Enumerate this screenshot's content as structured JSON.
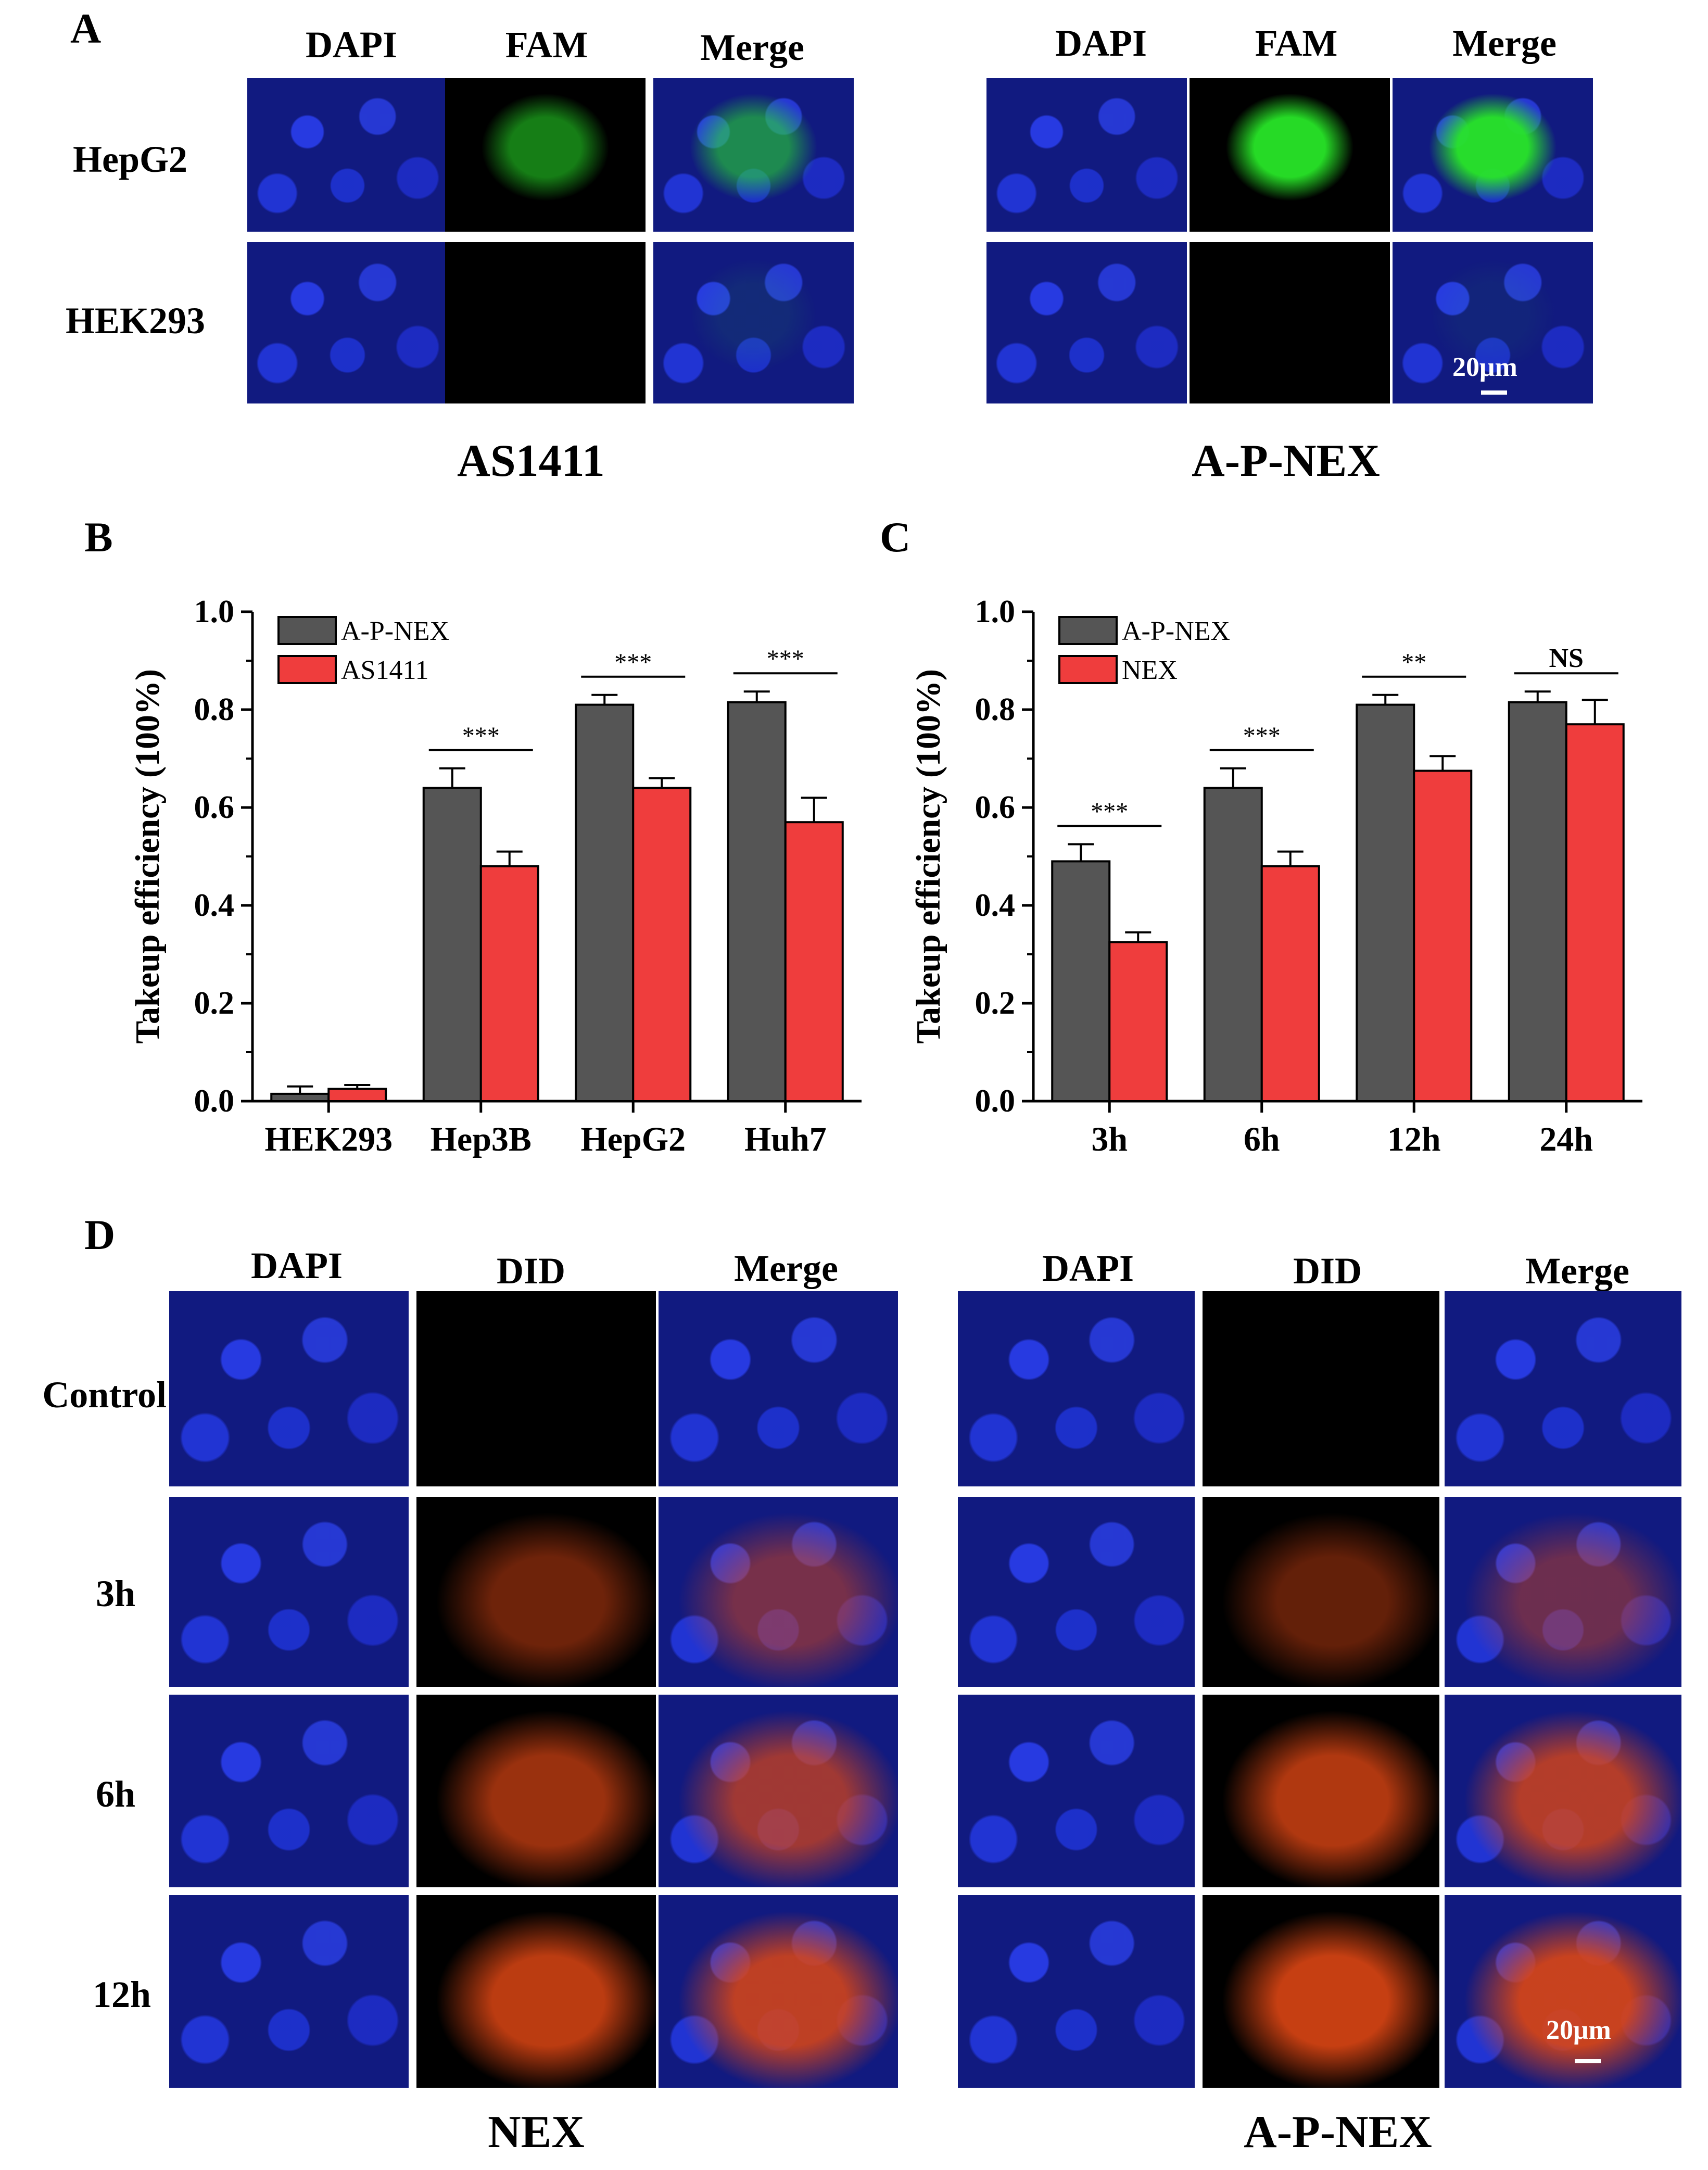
{
  "panels": {
    "A": {
      "letter": "A",
      "columns": [
        "DAPI",
        "FAM",
        "Merge"
      ],
      "rows": [
        "HepG2",
        "HEK293"
      ],
      "captions": [
        "AS1411",
        "A-P-NEX"
      ],
      "scale": "20μm"
    },
    "B": {
      "letter": "B"
    },
    "C": {
      "letter": "C"
    },
    "D": {
      "letter": "D",
      "columns": [
        "DAPI",
        "DID",
        "Merge"
      ],
      "rows": [
        "Control",
        "3h",
        "6h",
        "12h"
      ],
      "captions": [
        "NEX",
        "A-P-NEX"
      ],
      "scale": "20μm"
    }
  },
  "chart_data": [
    {
      "id": "B",
      "type": "bar",
      "categories": [
        "HEK293",
        "Hep3B",
        "HepG2",
        "Huh7"
      ],
      "series": [
        {
          "name": "A-P-NEX",
          "values": [
            0.015,
            0.64,
            0.81,
            0.815
          ],
          "errors": [
            0.015,
            0.04,
            0.02,
            0.022
          ],
          "color": "#555555"
        },
        {
          "name": "AS1411",
          "values": [
            0.025,
            0.48,
            0.64,
            0.57
          ],
          "errors": [
            0.008,
            0.03,
            0.02,
            0.05
          ],
          "color": "#ef3d3d"
        }
      ],
      "significance": [
        "",
        "***",
        "***",
        "***"
      ],
      "ylabel": "Takeup efficiency (100%)",
      "ylim": [
        0.0,
        1.0
      ],
      "yticks": [
        "0.0",
        "0.2",
        "0.4",
        "0.6",
        "0.8",
        "1.0"
      ],
      "legend": "top-left"
    },
    {
      "id": "C",
      "type": "bar",
      "categories": [
        "3h",
        "6h",
        "12h",
        "24h"
      ],
      "series": [
        {
          "name": "A-P-NEX",
          "values": [
            0.49,
            0.64,
            0.81,
            0.815
          ],
          "errors": [
            0.035,
            0.04,
            0.02,
            0.022
          ],
          "color": "#555555"
        },
        {
          "name": "NEX",
          "values": [
            0.325,
            0.48,
            0.675,
            0.77
          ],
          "errors": [
            0.02,
            0.03,
            0.03,
            0.05
          ],
          "color": "#ef3d3d"
        }
      ],
      "significance": [
        "***",
        "***",
        "**",
        "NS"
      ],
      "ylabel": "Takeup efficiency (100%)",
      "ylim": [
        0.0,
        1.0
      ],
      "yticks": [
        "0.0",
        "0.2",
        "0.4",
        "0.6",
        "0.8",
        "1.0"
      ],
      "legend": "top-left"
    }
  ],
  "colors": {
    "dapi_blue": "#1a2fd0",
    "fam_green": "#22dd22",
    "did_red": "#d23a12",
    "black_bg": "#000000"
  }
}
